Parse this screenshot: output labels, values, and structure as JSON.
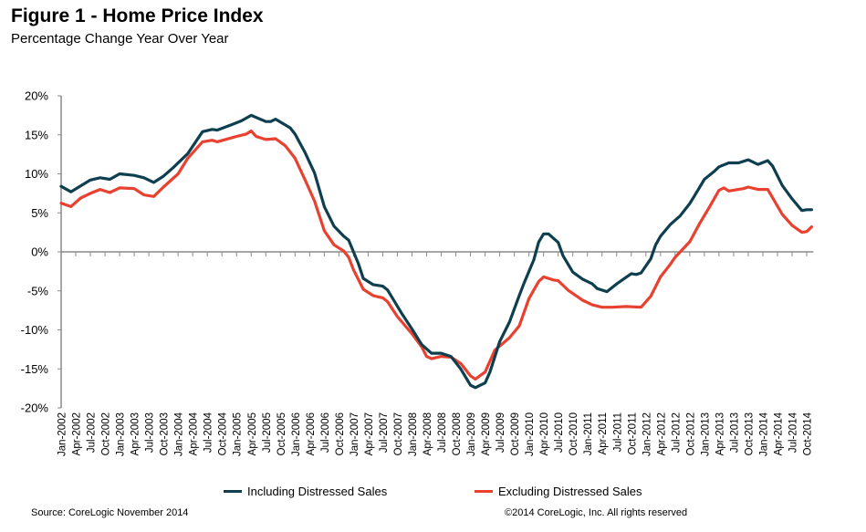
{
  "chart_data": {
    "type": "line",
    "title": "Figure 1 - Home Price Index",
    "subtitle": "Percentage Change Year Over Year",
    "xlabel": "",
    "ylabel": "",
    "ylim": [
      -20,
      20
    ],
    "y_ticks": [
      "20%",
      "15%",
      "10%",
      "5%",
      "0%",
      "-5%",
      "-10%",
      "-15%",
      "-20%"
    ],
    "y_tick_values": [
      20,
      15,
      10,
      5,
      0,
      -5,
      -10,
      -15,
      -20
    ],
    "xlim": [
      "2002-01",
      "2014-11"
    ],
    "x_ticks": [
      "Jan-2002",
      "Apr-2002",
      "Jul-2002",
      "Oct-2002",
      "Jan-2003",
      "Apr-2003",
      "Jul-2003",
      "Oct-2003",
      "Jan-2004",
      "Apr-2004",
      "Jul-2004",
      "Oct-2004",
      "Jan-2005",
      "Apr-2005",
      "Jul-2005",
      "Oct-2005",
      "Jan-2006",
      "Apr-2006",
      "Jul-2006",
      "Oct-2006",
      "Jan-2007",
      "Apr-2007",
      "Jul-2007",
      "Oct-2007",
      "Jan-2008",
      "Apr-2008",
      "Jul-2008",
      "Oct-2008",
      "Jan-2009",
      "Apr-2009",
      "Jul-2009",
      "Oct-2009",
      "Jan-2010",
      "Apr-2010",
      "Jul-2010",
      "Oct-2010",
      "Jan-2011",
      "Apr-2011",
      "Jul-2011",
      "Oct-2011",
      "Jan-2012",
      "Apr-2012",
      "Jul-2012",
      "Oct-2012",
      "Jan-2013",
      "Apr-2013",
      "Jul-2013",
      "Oct-2013",
      "Jan-2014",
      "Apr-2014",
      "Jul-2014",
      "Oct-2014"
    ],
    "grid": false,
    "legend_position": "bottom",
    "series": [
      {
        "name": "Including Distressed Sales",
        "color": "#0e3f4f",
        "points": [
          [
            "2002-01",
            8.4
          ],
          [
            "2002-03",
            7.7
          ],
          [
            "2002-07",
            9.2
          ],
          [
            "2002-09",
            9.5
          ],
          [
            "2002-11",
            9.3
          ],
          [
            "2003-01",
            10.0
          ],
          [
            "2003-04",
            9.8
          ],
          [
            "2003-06",
            9.5
          ],
          [
            "2003-08",
            8.9
          ],
          [
            "2003-10",
            9.7
          ],
          [
            "2003-12",
            10.8
          ],
          [
            "2004-03",
            12.6
          ],
          [
            "2004-06",
            15.4
          ],
          [
            "2004-08",
            15.7
          ],
          [
            "2004-09",
            15.6
          ],
          [
            "2004-12",
            16.3
          ],
          [
            "2005-02",
            16.8
          ],
          [
            "2005-04",
            17.5
          ],
          [
            "2005-07",
            16.7
          ],
          [
            "2005-08",
            16.7
          ],
          [
            "2005-09",
            17.0
          ],
          [
            "2005-12",
            15.9
          ],
          [
            "2006-01",
            15.1
          ],
          [
            "2006-03",
            12.8
          ],
          [
            "2006-05",
            10.1
          ],
          [
            "2006-07",
            5.8
          ],
          [
            "2006-09",
            3.3
          ],
          [
            "2006-11",
            2.0
          ],
          [
            "2006-12",
            1.5
          ],
          [
            "2007-02",
            -1.5
          ],
          [
            "2007-03",
            -3.4
          ],
          [
            "2007-05",
            -4.2
          ],
          [
            "2007-07",
            -4.4
          ],
          [
            "2007-08",
            -4.9
          ],
          [
            "2007-11",
            -8.0
          ],
          [
            "2008-01",
            -9.9
          ],
          [
            "2008-03",
            -11.9
          ],
          [
            "2008-05",
            -13.0
          ],
          [
            "2008-07",
            -13.0
          ],
          [
            "2008-09",
            -13.4
          ],
          [
            "2008-11",
            -15.0
          ],
          [
            "2009-01",
            -17.1
          ],
          [
            "2009-02",
            -17.4
          ],
          [
            "2009-04",
            -16.8
          ],
          [
            "2009-05",
            -15.4
          ],
          [
            "2009-07",
            -11.5
          ],
          [
            "2009-09",
            -9.0
          ],
          [
            "2009-11",
            -5.6
          ],
          [
            "2009-12",
            -4.0
          ],
          [
            "2010-02",
            -1.0
          ],
          [
            "2010-03",
            1.25
          ],
          [
            "2010-04",
            2.3
          ],
          [
            "2010-05",
            2.3
          ],
          [
            "2010-07",
            1.2
          ],
          [
            "2010-08",
            -0.5
          ],
          [
            "2010-10",
            -2.6
          ],
          [
            "2010-12",
            -3.5
          ],
          [
            "2011-02",
            -4.1
          ],
          [
            "2011-03",
            -4.7
          ],
          [
            "2011-05",
            -5.1
          ],
          [
            "2011-07",
            -4.1
          ],
          [
            "2011-10",
            -2.8
          ],
          [
            "2011-11",
            -2.9
          ],
          [
            "2011-12",
            -2.7
          ],
          [
            "2012-02",
            -0.9
          ],
          [
            "2012-03",
            0.9
          ],
          [
            "2012-04",
            2.0
          ],
          [
            "2012-06",
            3.5
          ],
          [
            "2012-08",
            4.6
          ],
          [
            "2012-10",
            6.2
          ],
          [
            "2012-11",
            7.2
          ],
          [
            "2013-01",
            9.3
          ],
          [
            "2013-03",
            10.3
          ],
          [
            "2013-04",
            10.9
          ],
          [
            "2013-06",
            11.4
          ],
          [
            "2013-08",
            11.4
          ],
          [
            "2013-10",
            11.8
          ],
          [
            "2013-12",
            11.2
          ],
          [
            "2014-02",
            11.7
          ],
          [
            "2014-03",
            11.0
          ],
          [
            "2014-05",
            8.5
          ],
          [
            "2014-07",
            6.8
          ],
          [
            "2014-09",
            5.3
          ],
          [
            "2014-10",
            5.4
          ],
          [
            "2014-11",
            5.4
          ]
        ]
      },
      {
        "name": "Excluding Distressed Sales",
        "color": "#e8412f",
        "points": [
          [
            "2002-01",
            6.25
          ],
          [
            "2002-03",
            5.8
          ],
          [
            "2002-05",
            6.9
          ],
          [
            "2002-07",
            7.5
          ],
          [
            "2002-09",
            8.0
          ],
          [
            "2002-11",
            7.6
          ],
          [
            "2003-01",
            8.2
          ],
          [
            "2003-04",
            8.1
          ],
          [
            "2003-06",
            7.3
          ],
          [
            "2003-08",
            7.1
          ],
          [
            "2003-10",
            8.3
          ],
          [
            "2004-01",
            10.0
          ],
          [
            "2004-03",
            12.0
          ],
          [
            "2004-06",
            14.1
          ],
          [
            "2004-08",
            14.3
          ],
          [
            "2004-09",
            14.1
          ],
          [
            "2005-01",
            14.8
          ],
          [
            "2005-03",
            15.1
          ],
          [
            "2005-04",
            15.5
          ],
          [
            "2005-05",
            14.8
          ],
          [
            "2005-07",
            14.4
          ],
          [
            "2005-09",
            14.5
          ],
          [
            "2005-11",
            13.6
          ],
          [
            "2006-01",
            12.0
          ],
          [
            "2006-03",
            9.3
          ],
          [
            "2006-05",
            6.5
          ],
          [
            "2006-07",
            2.7
          ],
          [
            "2006-09",
            0.9
          ],
          [
            "2006-11",
            0.1
          ],
          [
            "2006-12",
            -0.7
          ],
          [
            "2007-01",
            -2.3
          ],
          [
            "2007-03",
            -4.8
          ],
          [
            "2007-05",
            -5.6
          ],
          [
            "2007-07",
            -5.9
          ],
          [
            "2007-08",
            -6.4
          ],
          [
            "2007-10",
            -8.3
          ],
          [
            "2008-01",
            -10.5
          ],
          [
            "2008-03",
            -12.2
          ],
          [
            "2008-04",
            -13.4
          ],
          [
            "2008-05",
            -13.7
          ],
          [
            "2008-07",
            -13.4
          ],
          [
            "2008-09",
            -13.5
          ],
          [
            "2008-11",
            -14.3
          ],
          [
            "2009-01",
            -15.9
          ],
          [
            "2009-02",
            -16.3
          ],
          [
            "2009-04",
            -15.4
          ],
          [
            "2009-06",
            -12.6
          ],
          [
            "2009-09",
            -11.0
          ],
          [
            "2009-11",
            -9.5
          ],
          [
            "2010-01",
            -6.0
          ],
          [
            "2010-03",
            -3.8
          ],
          [
            "2010-04",
            -3.2
          ],
          [
            "2010-06",
            -3.6
          ],
          [
            "2010-07",
            -3.7
          ],
          [
            "2010-09",
            -4.9
          ],
          [
            "2010-12",
            -6.2
          ],
          [
            "2011-02",
            -6.8
          ],
          [
            "2011-04",
            -7.1
          ],
          [
            "2011-06",
            -7.1
          ],
          [
            "2011-09",
            -7.0
          ],
          [
            "2011-12",
            -7.1
          ],
          [
            "2012-02",
            -5.7
          ],
          [
            "2012-04",
            -3.2
          ],
          [
            "2012-06",
            -1.6
          ],
          [
            "2012-07",
            -0.7
          ],
          [
            "2012-10",
            1.3
          ],
          [
            "2012-12",
            3.6
          ],
          [
            "2013-02",
            5.7
          ],
          [
            "2013-04",
            7.9
          ],
          [
            "2013-05",
            8.2
          ],
          [
            "2013-06",
            7.8
          ],
          [
            "2013-09",
            8.1
          ],
          [
            "2013-10",
            8.3
          ],
          [
            "2013-12",
            8.0
          ],
          [
            "2014-02",
            8.0
          ],
          [
            "2014-05",
            4.8
          ],
          [
            "2014-07",
            3.4
          ],
          [
            "2014-09",
            2.5
          ],
          [
            "2014-10",
            2.6
          ],
          [
            "2014-11",
            3.2
          ]
        ]
      }
    ]
  },
  "footer": {
    "source": "Source: CoreLogic  November 2014",
    "copyright": "©2014 CoreLogic, Inc. All rights reserved"
  }
}
